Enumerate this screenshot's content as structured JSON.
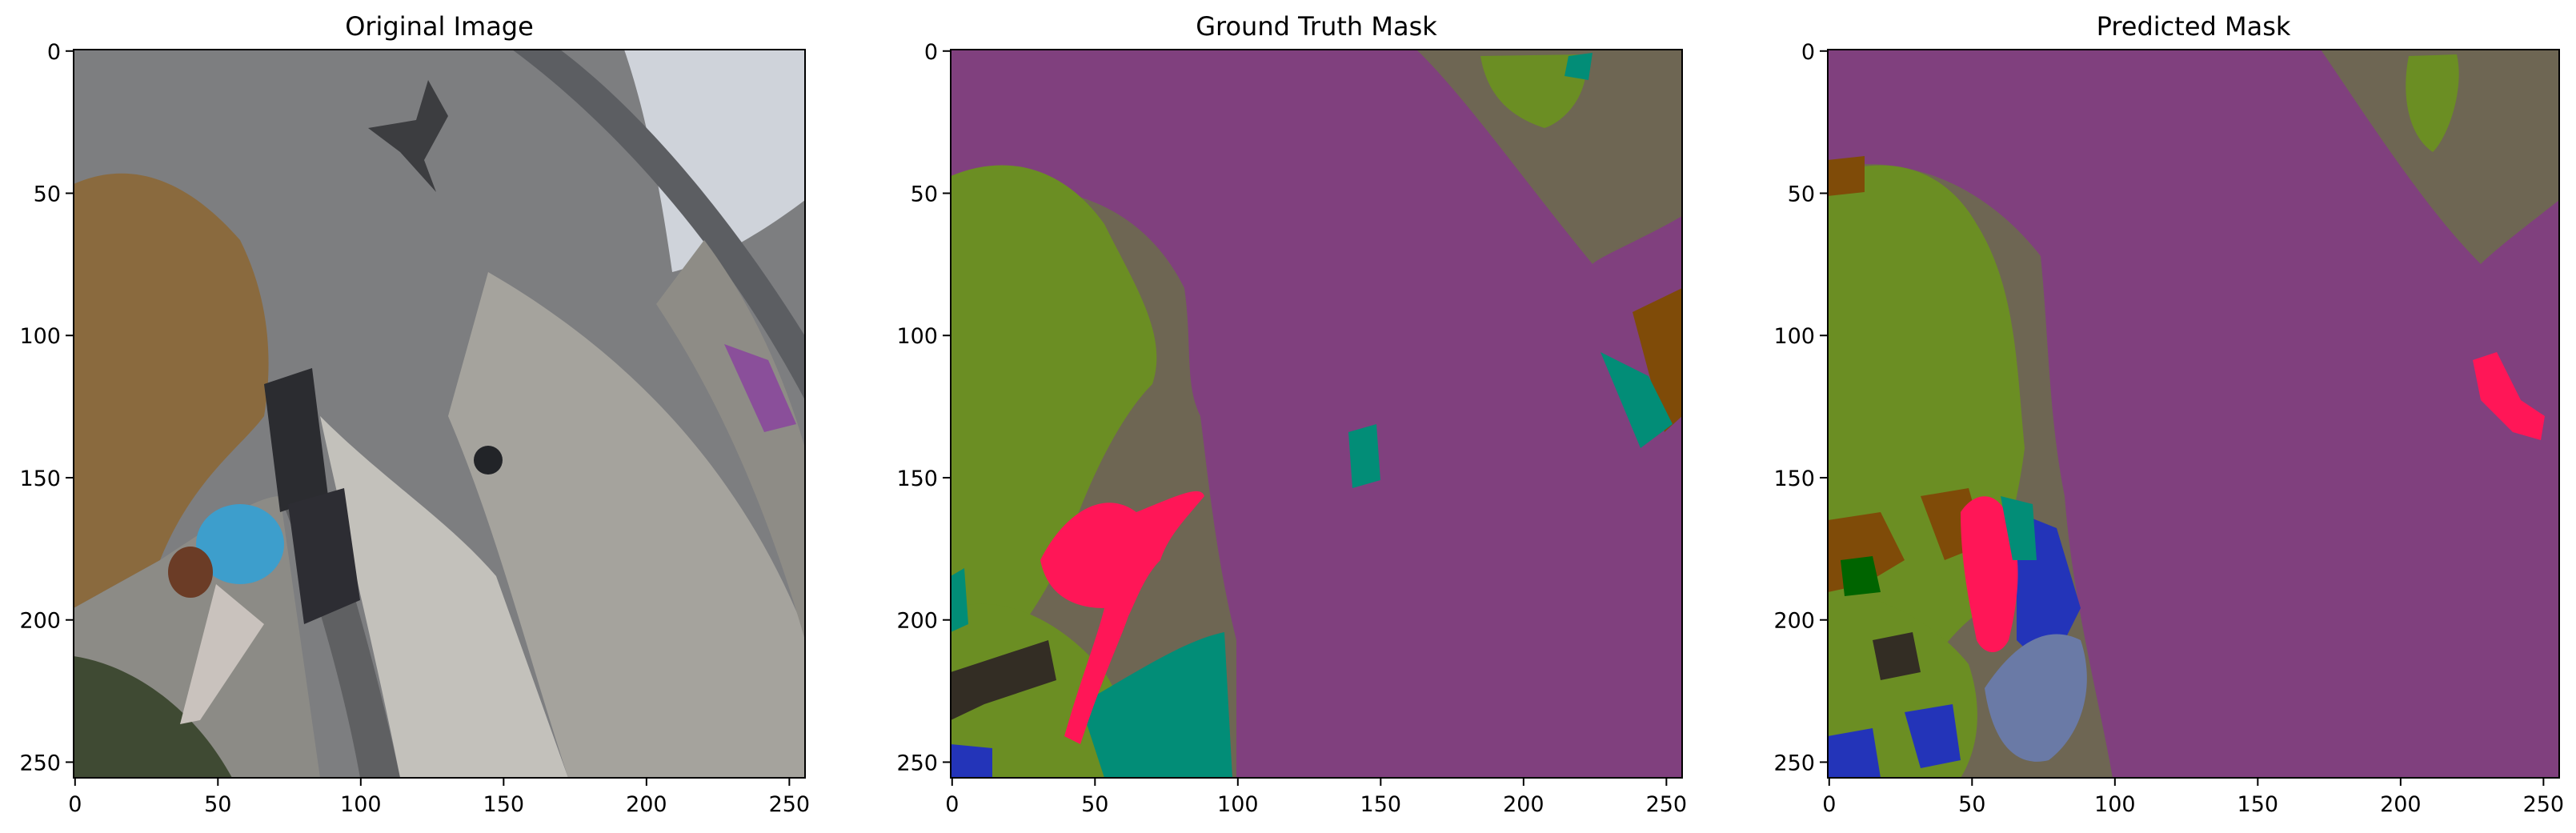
{
  "chart_data": {
    "type": "image",
    "panels": [
      {
        "title": "Original Image",
        "kind": "photo",
        "xlim": [
          0,
          255
        ],
        "ylim": [
          255,
          0
        ],
        "xticks": [
          0,
          50,
          100,
          150,
          200,
          250
        ],
        "yticks": [
          0,
          50,
          100,
          150,
          200,
          250
        ]
      },
      {
        "title": "Ground Truth Mask",
        "kind": "mask",
        "xlim": [
          0,
          255
        ],
        "ylim": [
          255,
          0
        ],
        "xticks": [
          0,
          50,
          100,
          150,
          200,
          250
        ],
        "yticks": [
          0,
          50,
          100,
          150,
          200,
          250
        ]
      },
      {
        "title": "Predicted Mask",
        "kind": "mask",
        "xlim": [
          0,
          255
        ],
        "ylim": [
          255,
          0
        ],
        "xticks": [
          0,
          50,
          100,
          150,
          200,
          250
        ],
        "yticks": [
          0,
          50,
          100,
          150,
          200,
          250
        ]
      }
    ],
    "colors": {
      "paved_area": "#80407e",
      "dirt": "#6e6653",
      "vegetation": "#6b8e23",
      "person": "#ff1657",
      "water": "#028d77",
      "rocks": "#7f4b08",
      "pool": "#2334b9",
      "tree": "#006400",
      "obstacle": "#332d24"
    },
    "photo_colors": {
      "pavement_dark": "#7d7e80",
      "pavement_light": "#b1aea6",
      "curb": "#5f6062",
      "gravel": "#d3d6dc",
      "bush": "#8a6a3e",
      "grass": "#5a6c3a",
      "shirt": "#3d9ecc",
      "hair": "#6b3c26"
    }
  }
}
